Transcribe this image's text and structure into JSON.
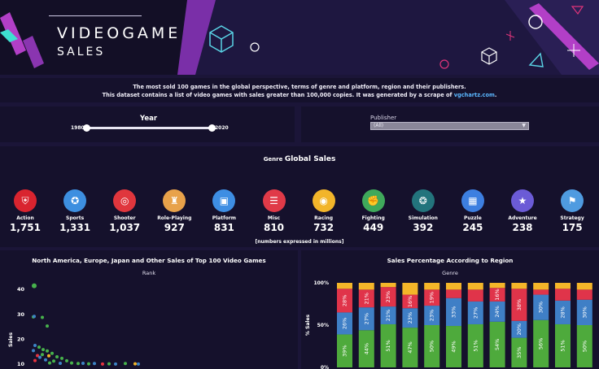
{
  "header": {
    "title": "VIDEOGAME",
    "subtitle": "SALES"
  },
  "description": {
    "line1": "The most sold 100 games in the global perspective, terms of genre and platform, region and their publishers.",
    "line2": "This dataset contains a list of video games with sales greater than 100,000 copies. It was generated by a scrape of ",
    "link": "vgchartz.com",
    "line2_end": "."
  },
  "year_filter": {
    "title": "Year",
    "min": "1980",
    "max": "2020"
  },
  "publisher_filter": {
    "label": "Publisher",
    "value": "(All)"
  },
  "genre_section": {
    "prefix": "Genre",
    "title": "Global Sales",
    "note": "[numbers expressed in millions]"
  },
  "genres": [
    {
      "name": "Action",
      "value": "1,751",
      "color": "#d9242f",
      "icon": "shield-icon"
    },
    {
      "name": "Sports",
      "value": "1,331",
      "color": "#3d8fe0",
      "icon": "medal-icon"
    },
    {
      "name": "Shooter",
      "value": "1,037",
      "color": "#e0363d",
      "icon": "monitor-target-icon"
    },
    {
      "name": "Role-Playing",
      "value": "927",
      "color": "#e8a24a",
      "icon": "role-playing-icon"
    },
    {
      "name": "Platform",
      "value": "831",
      "color": "#3e8ee3",
      "icon": "platform-screen-icon"
    },
    {
      "name": "Misc",
      "value": "810",
      "color": "#e03a48",
      "icon": "list-icon"
    },
    {
      "name": "Racing",
      "value": "732",
      "color": "#f2b52a",
      "icon": "steering-wheel-icon"
    },
    {
      "name": "Fighting",
      "value": "449",
      "color": "#3fa95b",
      "icon": "fighter-icon"
    },
    {
      "name": "Simulation",
      "value": "392",
      "color": "#23747c",
      "icon": "simulation-icon"
    },
    {
      "name": "Puzzle",
      "value": "245",
      "color": "#3d7fe0",
      "icon": "puzzle-icon"
    },
    {
      "name": "Adventure",
      "value": "238",
      "color": "#6b5bd6",
      "icon": "adventure-icon"
    },
    {
      "name": "Strategy",
      "value": "175",
      "color": "#4f9be0",
      "icon": "strategy-flag-icon"
    }
  ],
  "chart_data": [
    {
      "type": "scatter",
      "title": "North America, Europe, Japan and Other Sales of Top 100 Video Games",
      "subtitle": "Rank",
      "ylabel": "Sales",
      "ylim": [
        8,
        44
      ],
      "yticks": [
        10,
        20,
        30,
        40
      ],
      "points": [
        {
          "x": 6,
          "y": 41.5,
          "color": "#47b24c"
        },
        {
          "x": 5,
          "y": 29.0,
          "color": "#47b24c"
        },
        {
          "x": 6,
          "y": 29.2,
          "color": "#3d84c6"
        },
        {
          "x": 16,
          "y": 28.8,
          "color": "#47b24c"
        },
        {
          "x": 22,
          "y": 25.3,
          "color": "#47b24c"
        },
        {
          "x": 7,
          "y": 17.5,
          "color": "#3d84c6"
        },
        {
          "x": 12,
          "y": 16.8,
          "color": "#47b24c"
        },
        {
          "x": 17,
          "y": 15.8,
          "color": "#47b24c"
        },
        {
          "x": 5,
          "y": 15.4,
          "color": "#3d84c6"
        },
        {
          "x": 22,
          "y": 15.3,
          "color": "#47b24c"
        },
        {
          "x": 28,
          "y": 14.3,
          "color": "#47b24c"
        },
        {
          "x": 10,
          "y": 13.4,
          "color": "#e5333f"
        },
        {
          "x": 16,
          "y": 13.8,
          "color": "#47b24c"
        },
        {
          "x": 24,
          "y": 13.3,
          "color": "#f2b52a"
        },
        {
          "x": 34,
          "y": 12.9,
          "color": "#47b24c"
        },
        {
          "x": 13,
          "y": 12.7,
          "color": "#3d84c6"
        },
        {
          "x": 40,
          "y": 12.3,
          "color": "#47b24c"
        },
        {
          "x": 20,
          "y": 11.7,
          "color": "#3d84c6"
        },
        {
          "x": 7,
          "y": 11.4,
          "color": "#e5333f"
        },
        {
          "x": 30,
          "y": 11.2,
          "color": "#47b24c"
        },
        {
          "x": 46,
          "y": 11.3,
          "color": "#47b24c"
        },
        {
          "x": 25,
          "y": 10.4,
          "color": "#47b24c"
        },
        {
          "x": 38,
          "y": 10.3,
          "color": "#3d84c6"
        },
        {
          "x": 52,
          "y": 10.4,
          "color": "#47b24c"
        },
        {
          "x": 60,
          "y": 10.2,
          "color": "#47b24c"
        },
        {
          "x": 66,
          "y": 10.3,
          "color": "#3d84c6"
        },
        {
          "x": 73,
          "y": 10.1,
          "color": "#47b24c"
        },
        {
          "x": 80,
          "y": 10.2,
          "color": "#3d84c6"
        },
        {
          "x": 90,
          "y": 10.0,
          "color": "#e5333f"
        },
        {
          "x": 98,
          "y": 10.1,
          "color": "#47b24c"
        },
        {
          "x": 106,
          "y": 10.0,
          "color": "#3d84c6"
        },
        {
          "x": 118,
          "y": 10.2,
          "color": "#47b24c"
        },
        {
          "x": 130,
          "y": 10.1,
          "color": "#f2b52a"
        },
        {
          "x": 134,
          "y": 10.0,
          "color": "#3d84c6"
        }
      ]
    },
    {
      "type": "bar",
      "stacked": true,
      "title": "Sales Percentage According to Region",
      "subtitle": "Genre",
      "ylabel": "% Sales",
      "yticks": [
        "100%",
        "50%",
        "0%"
      ],
      "series": [
        {
          "color": "#4eaa3c",
          "values": [
            39,
            44,
            51,
            47,
            50,
            49,
            51,
            54,
            35,
            56,
            51,
            50
          ]
        },
        {
          "color": "#3f7fc6",
          "values": [
            26,
            27,
            21,
            23,
            23,
            33,
            27,
            24,
            20,
            30,
            28,
            30
          ]
        },
        {
          "color": "#e0344a",
          "values": [
            28,
            21,
            23,
            16,
            19,
            10,
            14,
            16,
            38,
            6,
            14,
            12
          ]
        },
        {
          "color": "#f4b629",
          "values": [
            7,
            8,
            5,
            14,
            8,
            8,
            8,
            6,
            7,
            8,
            7,
            8
          ]
        }
      ],
      "labels": [
        [
          "39%",
          "26%",
          "28%"
        ],
        [
          "44%",
          "27%",
          "21%"
        ],
        [
          "51%",
          "21%",
          "23%"
        ],
        [
          "47%",
          "23%",
          "16%"
        ],
        [
          "50%",
          "23%",
          "19%"
        ],
        [
          "49%",
          "33%",
          ""
        ],
        [
          "51%",
          "27%",
          ""
        ],
        [
          "54%",
          "24%",
          "16%"
        ],
        [
          "35%",
          "20%",
          "38%"
        ],
        [
          "56%",
          "30%",
          ""
        ],
        [
          "51%",
          "28%",
          ""
        ],
        [
          "50%",
          "30%",
          ""
        ]
      ]
    }
  ]
}
